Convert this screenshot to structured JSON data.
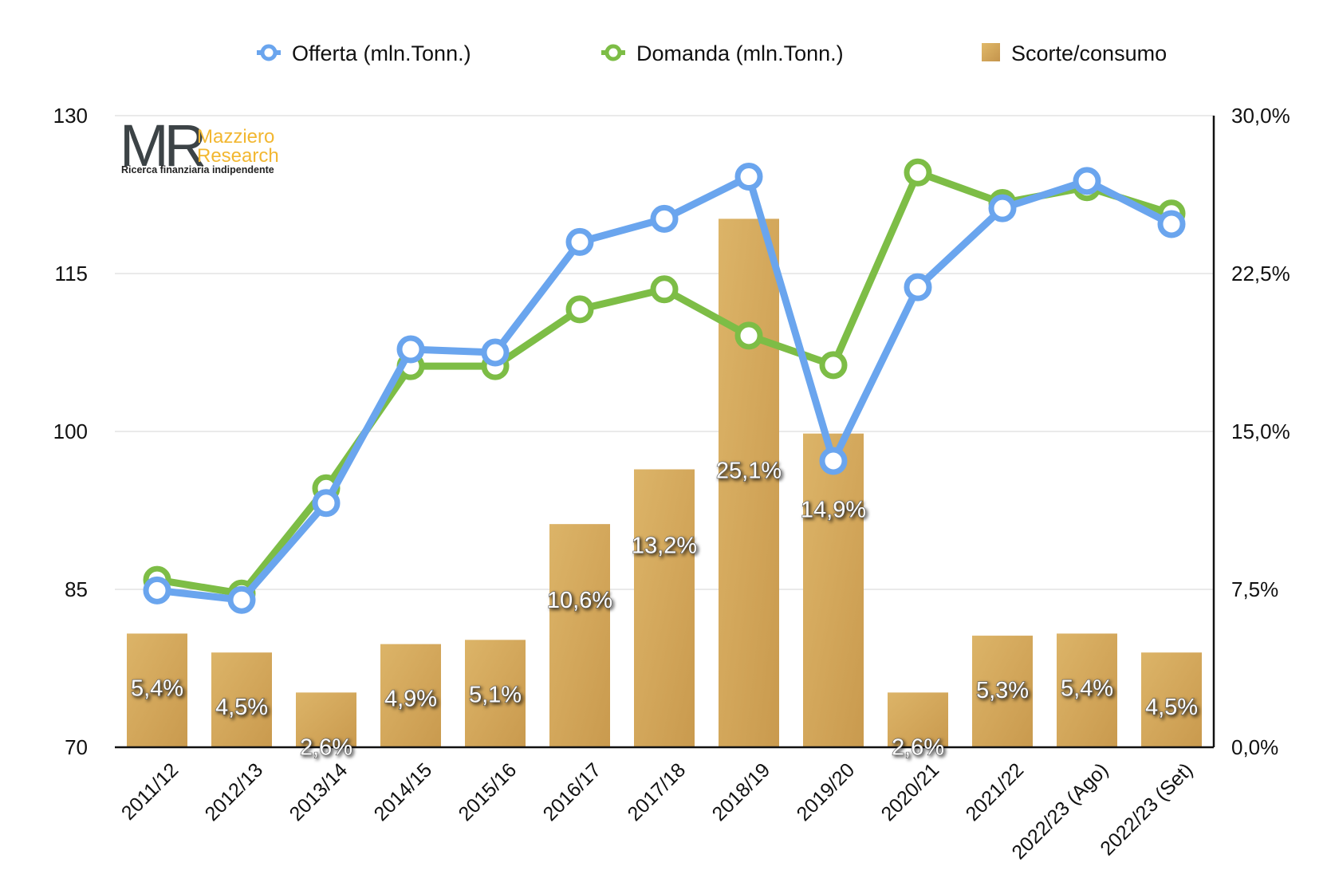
{
  "logo": {
    "mark": "MR",
    "name_line1": "Mazziero",
    "name_line2": "Research",
    "tagline": "Ricerca finanziaria indipendente"
  },
  "chart_data": {
    "type": "bar+line",
    "title": "",
    "categories": [
      "2011/12",
      "2012/13",
      "2013/14",
      "2014/15",
      "2015/16",
      "2016/17",
      "2017/18",
      "2018/19",
      "2019/20",
      "2020/21",
      "2021/22",
      "2022/23 (Ago)",
      "2022/23 (Set)"
    ],
    "y_left": {
      "min": 70,
      "max": 130,
      "ticks": [
        "130",
        "115",
        "100",
        "85",
        "70"
      ],
      "tick_values": [
        130,
        115,
        100,
        85,
        70
      ]
    },
    "y_right": {
      "min": 0,
      "max": 30,
      "ticks": [
        "30,0%",
        "22,5%",
        "15,0%",
        "7,5%",
        "0,0%"
      ],
      "tick_values": [
        30,
        22.5,
        15,
        7.5,
        0
      ]
    },
    "grid": true,
    "legend_position": "top",
    "series": [
      {
        "name": "Offerta (mln.Tonn.)",
        "kind": "line",
        "axis": "left",
        "color": "#6aa5ee",
        "values": [
          84.9,
          84.0,
          93.2,
          107.8,
          107.5,
          118.0,
          120.2,
          124.2,
          97.2,
          113.7,
          121.2,
          123.8,
          119.7
        ]
      },
      {
        "name": "Domanda (mln.Tonn.)",
        "kind": "line",
        "axis": "left",
        "color": "#7dbd46",
        "values": [
          85.9,
          84.6,
          94.6,
          106.2,
          106.2,
          111.6,
          113.5,
          109.1,
          106.3,
          124.6,
          121.7,
          123.2,
          120.7
        ]
      },
      {
        "name": "Scorte/consumo",
        "kind": "bar",
        "axis": "right",
        "color": "#d7aa5f",
        "values": [
          5.4,
          4.5,
          2.6,
          4.9,
          5.1,
          10.6,
          13.2,
          25.1,
          14.9,
          2.6,
          5.3,
          5.4,
          4.5
        ],
        "labels": [
          "5,4%",
          "4,5%",
          "2,6%",
          "4,9%",
          "5,1%",
          "10,6%",
          "13,2%",
          "25,1%",
          "14,9%",
          "2,6%",
          "5,3%",
          "5,4%",
          "4,5%"
        ]
      }
    ]
  }
}
